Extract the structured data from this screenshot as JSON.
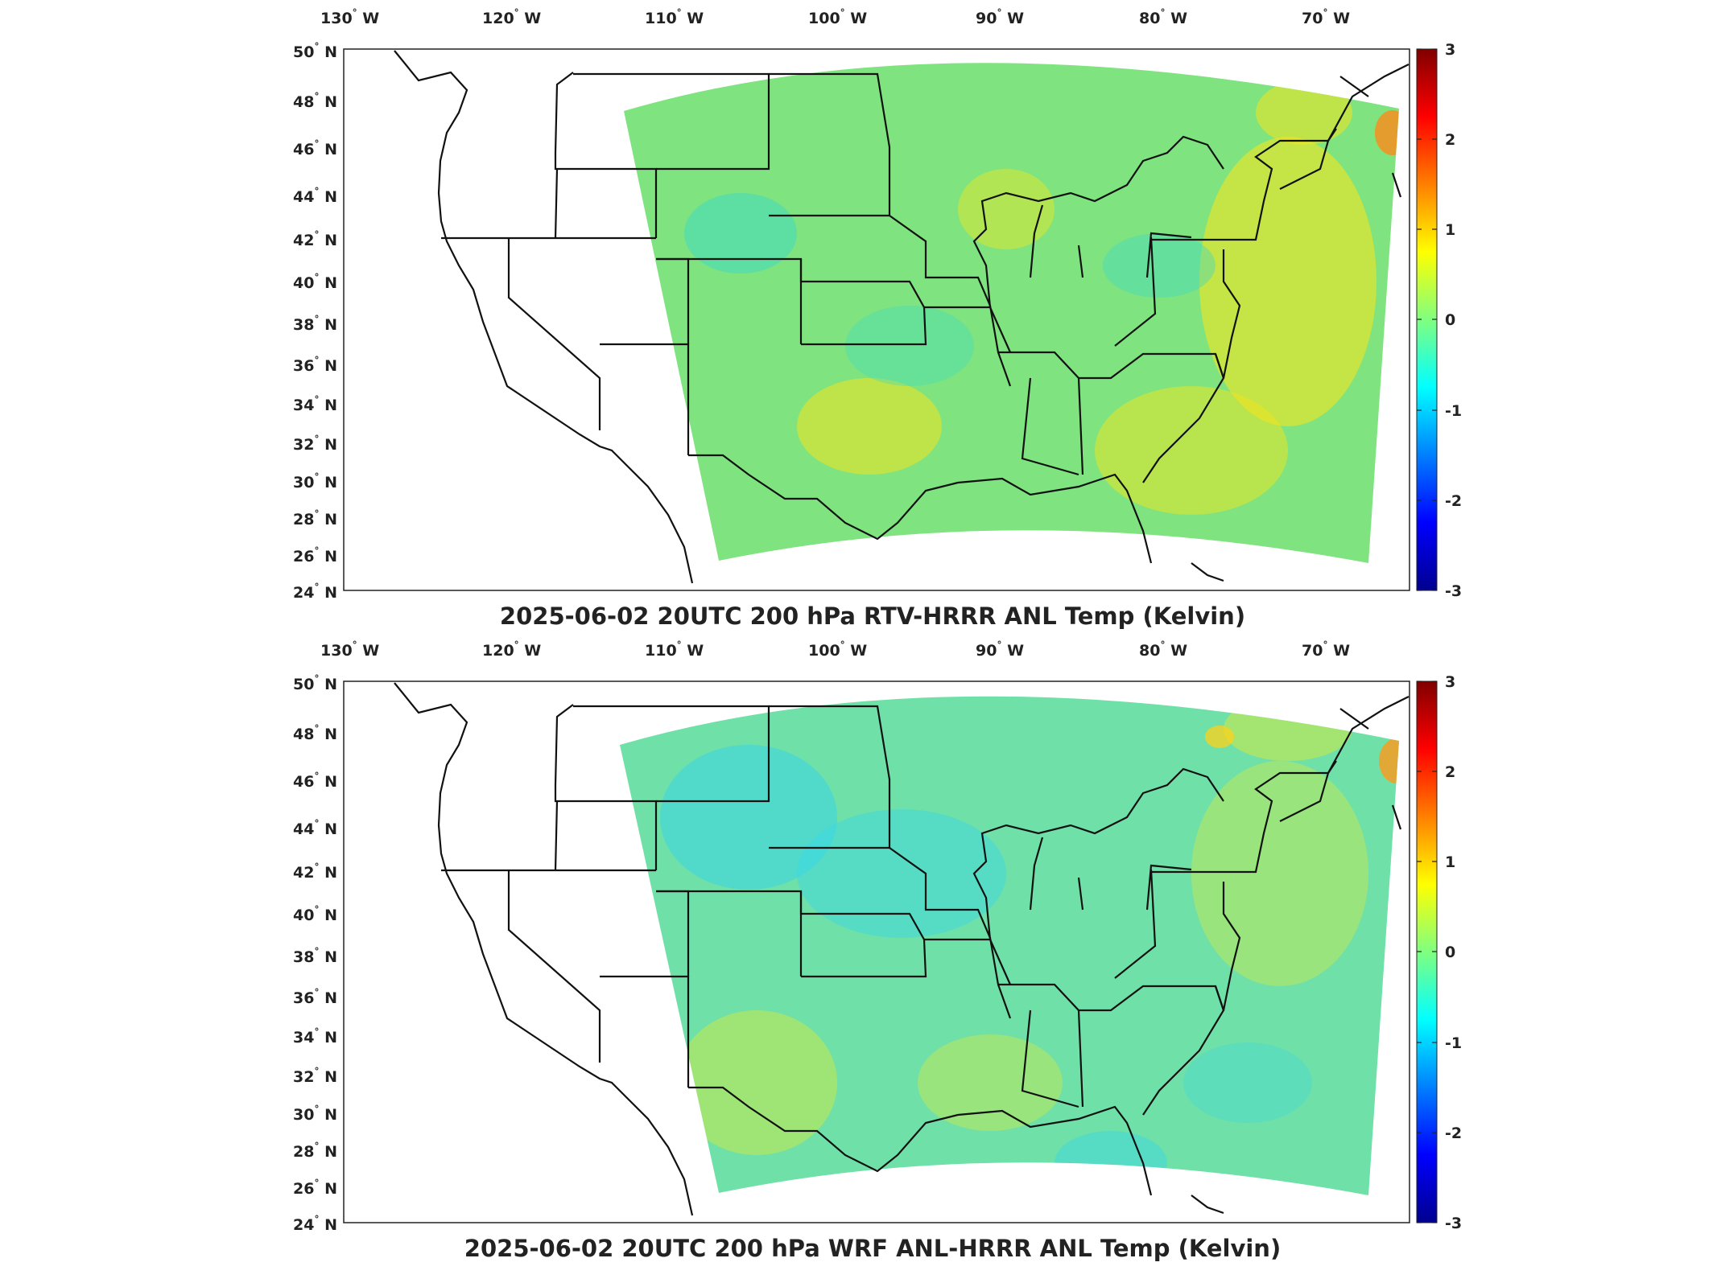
{
  "longitude_labels": [
    {
      "deg": "130",
      "hem": "W"
    },
    {
      "deg": "120",
      "hem": "W"
    },
    {
      "deg": "110",
      "hem": "W"
    },
    {
      "deg": "100",
      "hem": "W"
    },
    {
      "deg": "90",
      "hem": "W"
    },
    {
      "deg": "80",
      "hem": "W"
    },
    {
      "deg": "70",
      "hem": "W"
    }
  ],
  "latitude_labels": [
    {
      "deg": "50",
      "hem": "N"
    },
    {
      "deg": "48",
      "hem": "N"
    },
    {
      "deg": "46",
      "hem": "N"
    },
    {
      "deg": "44",
      "hem": "N"
    },
    {
      "deg": "42",
      "hem": "N"
    },
    {
      "deg": "40",
      "hem": "N"
    },
    {
      "deg": "38",
      "hem": "N"
    },
    {
      "deg": "36",
      "hem": "N"
    },
    {
      "deg": "34",
      "hem": "N"
    },
    {
      "deg": "32",
      "hem": "N"
    },
    {
      "deg": "30",
      "hem": "N"
    },
    {
      "deg": "28",
      "hem": "N"
    },
    {
      "deg": "26",
      "hem": "N"
    },
    {
      "deg": "24",
      "hem": "N"
    }
  ],
  "colorbar": {
    "ticks": [
      "3",
      "2",
      "1",
      "0",
      "-1",
      "-2",
      "-3"
    ],
    "colormap": [
      "#00008f",
      "#0000ff",
      "#0080ff",
      "#00ffff",
      "#80ff80",
      "#ffff00",
      "#ff8000",
      "#ff0000",
      "#800000"
    ]
  },
  "panels": [
    {
      "title": "2025-06-02 20UTC 200 hPa RTV-HRRR ANL Temp (Kelvin)",
      "field_base_color": "#7fe37f",
      "warm_color": "#f2e61e",
      "cool_color": "#3cd9c8"
    },
    {
      "title": "2025-06-02 20UTC 200 hPa WRF ANL-HRRR ANL Temp (Kelvin)",
      "field_base_color": "#6fe0a8",
      "warm_color": "#d9ea3a",
      "cool_color": "#38d6e6"
    }
  ]
}
